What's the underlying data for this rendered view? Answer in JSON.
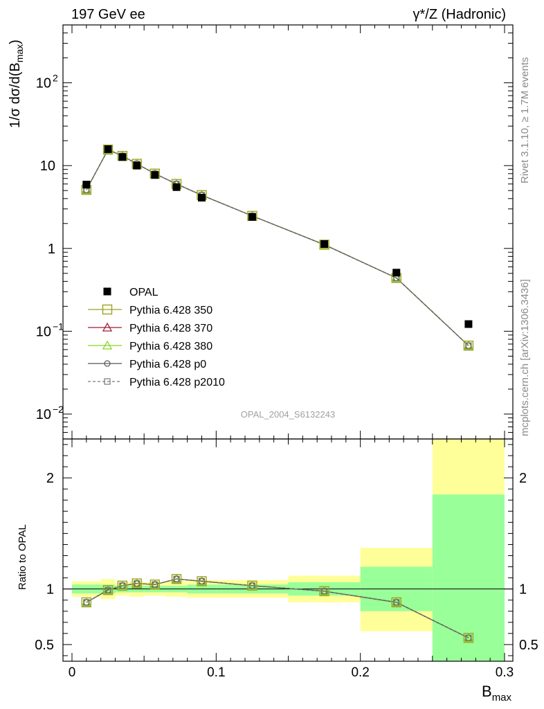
{
  "header": {
    "left": "197 GeV ee",
    "right": "γ*/Z (Hadronic)"
  },
  "side_labels": {
    "rivet": "Rivet 3.1.10, ≥ 1.7M events",
    "mcplots": "mcplots.cern.ch [arXiv:1306.3436]"
  },
  "watermark": "OPAL_2004_S6132243",
  "chart_data": {
    "type": "line",
    "x_axis": {
      "label": "B",
      "label_sub": "max",
      "range": [
        0,
        0.3
      ],
      "ticks": [
        "0",
        "0.1",
        "0.2",
        "0.3"
      ],
      "tick_values": [
        0,
        0.1,
        0.2,
        0.3
      ]
    },
    "main_panel": {
      "y_label": "1/σ dσ/d(B",
      "y_label_sub": "max",
      "y_label_end": ")",
      "y_scale": "log",
      "y_range": [
        0.005,
        500
      ],
      "y_ticks": [
        {
          "value": 0.01,
          "base": "10",
          "exp": "−2"
        },
        {
          "value": 0.1,
          "base": "10",
          "exp": "−1"
        },
        {
          "value": 1,
          "base": "1",
          "exp": ""
        },
        {
          "value": 10,
          "base": "10",
          "exp": ""
        },
        {
          "value": 100,
          "base": "10",
          "exp": "2"
        }
      ],
      "data": {
        "name": "OPAL",
        "x": [
          0.01,
          0.025,
          0.035,
          0.045,
          0.0575,
          0.0725,
          0.09,
          0.125,
          0.175,
          0.225,
          0.275
        ],
        "y": [
          5.9,
          15.8,
          12.7,
          10.0,
          7.7,
          5.5,
          4.1,
          2.4,
          1.13,
          0.51,
          0.122
        ]
      },
      "mc": {
        "x": [
          0.01,
          0.025,
          0.035,
          0.045,
          0.0575,
          0.0725,
          0.09,
          0.125,
          0.175,
          0.225,
          0.275
        ],
        "y": [
          5.1,
          15.6,
          13.1,
          10.5,
          8.0,
          6.0,
          4.4,
          2.47,
          1.11,
          0.44,
          0.067
        ]
      }
    },
    "ratio_panel": {
      "y_label": "Ratio to OPAL",
      "y_range": [
        0.35,
        2.35
      ],
      "y_ticks": [
        0.5,
        1,
        2
      ],
      "y_tick_labels": [
        "0.5",
        "1",
        "2"
      ],
      "bands": [
        {
          "x0": 0.0,
          "x1": 0.02,
          "yellow": [
            0.93,
            1.07
          ],
          "green": [
            0.96,
            1.04
          ]
        },
        {
          "x0": 0.02,
          "x1": 0.03,
          "yellow": [
            0.91,
            1.09
          ],
          "green": [
            0.96,
            1.04
          ]
        },
        {
          "x0": 0.03,
          "x1": 0.04,
          "yellow": [
            0.94,
            1.06
          ],
          "green": [
            0.97,
            1.03
          ]
        },
        {
          "x0": 0.04,
          "x1": 0.05,
          "yellow": [
            0.93,
            1.07
          ],
          "green": [
            0.97,
            1.03
          ]
        },
        {
          "x0": 0.05,
          "x1": 0.065,
          "yellow": [
            0.94,
            1.06
          ],
          "green": [
            0.97,
            1.03
          ]
        },
        {
          "x0": 0.065,
          "x1": 0.08,
          "yellow": [
            0.93,
            1.07
          ],
          "green": [
            0.97,
            1.03
          ]
        },
        {
          "x0": 0.08,
          "x1": 0.1,
          "yellow": [
            0.92,
            1.08
          ],
          "green": [
            0.96,
            1.04
          ]
        },
        {
          "x0": 0.1,
          "x1": 0.15,
          "yellow": [
            0.92,
            1.08
          ],
          "green": [
            0.96,
            1.04
          ]
        },
        {
          "x0": 0.15,
          "x1": 0.2,
          "yellow": [
            0.88,
            1.12
          ],
          "green": [
            0.94,
            1.06
          ]
        },
        {
          "x0": 0.2,
          "x1": 0.25,
          "yellow": [
            0.62,
            1.37
          ],
          "green": [
            0.8,
            1.2
          ]
        },
        {
          "x0": 0.25,
          "x1": 0.3,
          "yellow": [
            0.35,
            2.35
          ],
          "green": [
            0.35,
            1.85
          ]
        }
      ],
      "ratio": {
        "x": [
          0.01,
          0.025,
          0.035,
          0.045,
          0.0575,
          0.0725,
          0.09,
          0.125,
          0.175,
          0.225,
          0.275
        ],
        "y": [
          0.88,
          0.99,
          1.03,
          1.05,
          1.04,
          1.09,
          1.07,
          1.03,
          0.98,
          0.88,
          0.56
        ]
      }
    },
    "legend": {
      "placement": "lower-left",
      "entries": [
        {
          "name": "OPAL",
          "marker": "filled-square",
          "color": "#000000",
          "line": "none"
        },
        {
          "name": "Pythia 6.428 350",
          "marker": "open-square",
          "color": "#a0a020",
          "line": "solid"
        },
        {
          "name": "Pythia 6.428 370",
          "marker": "open-triangle",
          "color": "#a01c30",
          "line": "solid"
        },
        {
          "name": "Pythia 6.428 380",
          "marker": "open-triangle",
          "color": "#88d820",
          "line": "solid"
        },
        {
          "name": "Pythia 6.428 p0",
          "marker": "open-circle",
          "color": "#555555",
          "line": "solid"
        },
        {
          "name": "Pythia 6.428 p2010",
          "marker": "open-square-small",
          "color": "#777777",
          "line": "dashed"
        }
      ]
    },
    "colors": {
      "yellow_band": "#ffff99",
      "green_band": "#99ff99"
    }
  }
}
